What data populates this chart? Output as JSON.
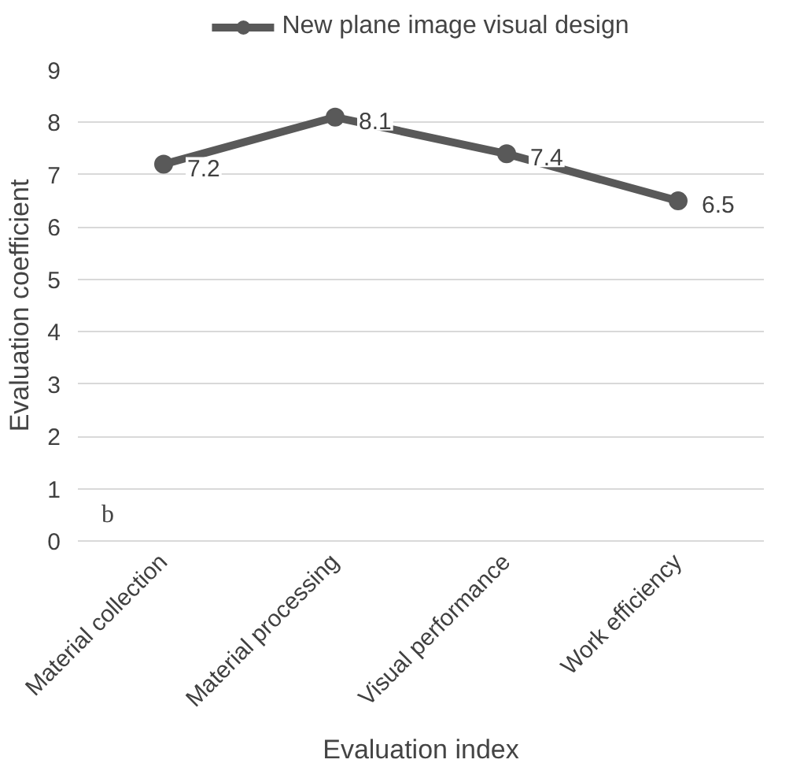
{
  "chart_data": {
    "type": "line",
    "xlabel": "Evaluation index",
    "ylabel": "Evaluation coefficient",
    "categories": [
      "Material collection",
      "Material processing",
      "Visual performance",
      "Work efficiency"
    ],
    "series": [
      {
        "name": "New plane image visual design",
        "color": "#595959",
        "values": [
          7.2,
          8.1,
          7.4,
          6.5
        ]
      }
    ],
    "ylim": [
      0,
      9
    ],
    "yticks": [
      0,
      1,
      2,
      3,
      4,
      5,
      6,
      7,
      8,
      9
    ],
    "grid": "y",
    "legend": "top",
    "marker": "circle",
    "data_labels": true,
    "annotations": [
      "b"
    ]
  }
}
